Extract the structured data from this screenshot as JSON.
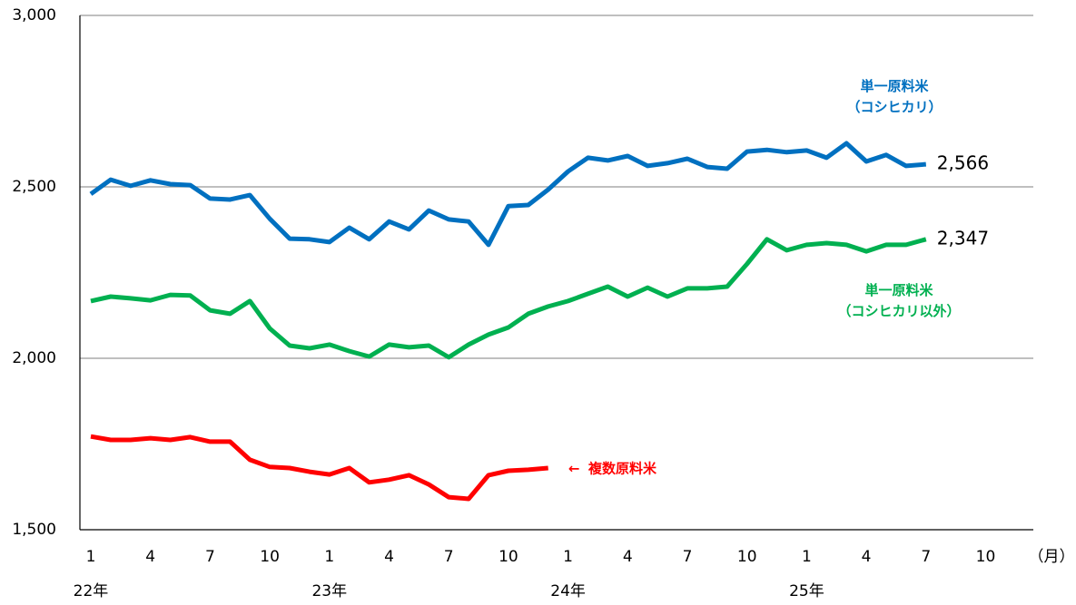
{
  "chart_data": {
    "type": "line",
    "categories": [
      "1",
      null,
      null,
      "4",
      null,
      null,
      "7",
      null,
      null,
      "10",
      null,
      null,
      "1",
      null,
      null,
      "4",
      null,
      null,
      "7",
      null,
      null,
      "10",
      null,
      null,
      "1",
      null,
      null,
      "4",
      null,
      null,
      "7",
      null,
      null,
      "10",
      null,
      null,
      "1",
      null,
      null,
      "4",
      null,
      null,
      "7",
      null,
      null,
      "10"
    ],
    "year_labels": [
      "22年",
      "23年",
      "24年",
      "25年"
    ],
    "x_unit": "（月）",
    "ylim": [
      1500,
      3000
    ],
    "yticks": [
      {
        "value": 1500,
        "label": "1,500"
      },
      {
        "value": 2000,
        "label": "2,000"
      },
      {
        "value": 2500,
        "label": "2,500"
      },
      {
        "value": 3000,
        "label": "3,000"
      }
    ],
    "grid": true,
    "series": [
      {
        "name": "単一原料米\n（コシヒカリ）",
        "color": "#0070c0",
        "values": [
          2479,
          2521,
          2503,
          2519,
          2508,
          2505,
          2466,
          2463,
          2476,
          2407,
          2349,
          2347,
          2339,
          2381,
          2347,
          2399,
          2376,
          2431,
          2405,
          2399,
          2331,
          2444,
          2447,
          2492,
          2545,
          2585,
          2577,
          2590,
          2561,
          2569,
          2582,
          2558,
          2553,
          2603,
          2608,
          2601,
          2606,
          2585,
          2627,
          2574,
          2593,
          2561,
          2566,
          null,
          null,
          null
        ],
        "value_labels": [
          null,
          null,
          null,
          null,
          null,
          null,
          null,
          null,
          null,
          null,
          null,
          null,
          null,
          null,
          null,
          null,
          null,
          null,
          null,
          null,
          null,
          null,
          null,
          null,
          null,
          null,
          null,
          null,
          null,
          null,
          null,
          null,
          null,
          null,
          null,
          null,
          null,
          null,
          null,
          null,
          null,
          null,
          "2,566",
          null,
          null,
          null
        ]
      },
      {
        "name": "単一原料米\n（コシヒカリ以外）",
        "color": "#00b050",
        "values": [
          2167,
          2180,
          2175,
          2169,
          2185,
          2183,
          2140,
          2130,
          2167,
          2087,
          2037,
          2029,
          2040,
          2021,
          2005,
          2040,
          2032,
          2037,
          2003,
          2040,
          2069,
          2090,
          2130,
          2151,
          2167,
          2188,
          2209,
          2180,
          2206,
          2180,
          2204,
          2204,
          2209,
          2275,
          2347,
          2315,
          2331,
          2336,
          2331,
          2312,
          2331,
          2331,
          2347,
          null,
          null,
          null
        ],
        "value_labels": [
          null,
          null,
          null,
          null,
          null,
          null,
          null,
          null,
          null,
          null,
          null,
          null,
          null,
          null,
          null,
          null,
          null,
          null,
          null,
          null,
          null,
          null,
          null,
          null,
          null,
          null,
          null,
          null,
          null,
          null,
          null,
          null,
          null,
          null,
          null,
          null,
          null,
          null,
          null,
          null,
          null,
          null,
          "2,347",
          null,
          null,
          null
        ]
      },
      {
        "name": "複数原料米",
        "color": "#ff0000",
        "values": [
          1772,
          1762,
          1762,
          1767,
          1762,
          1770,
          1757,
          1757,
          1704,
          1683,
          1680,
          1669,
          1661,
          1680,
          1638,
          1646,
          1659,
          1632,
          1595,
          1590,
          1659,
          1672,
          1675,
          1680,
          null,
          null,
          null,
          null,
          null,
          null,
          null,
          null,
          null,
          null,
          null,
          null,
          null,
          null,
          null,
          null,
          null,
          null,
          null,
          null,
          null,
          null
        ]
      }
    ]
  }
}
